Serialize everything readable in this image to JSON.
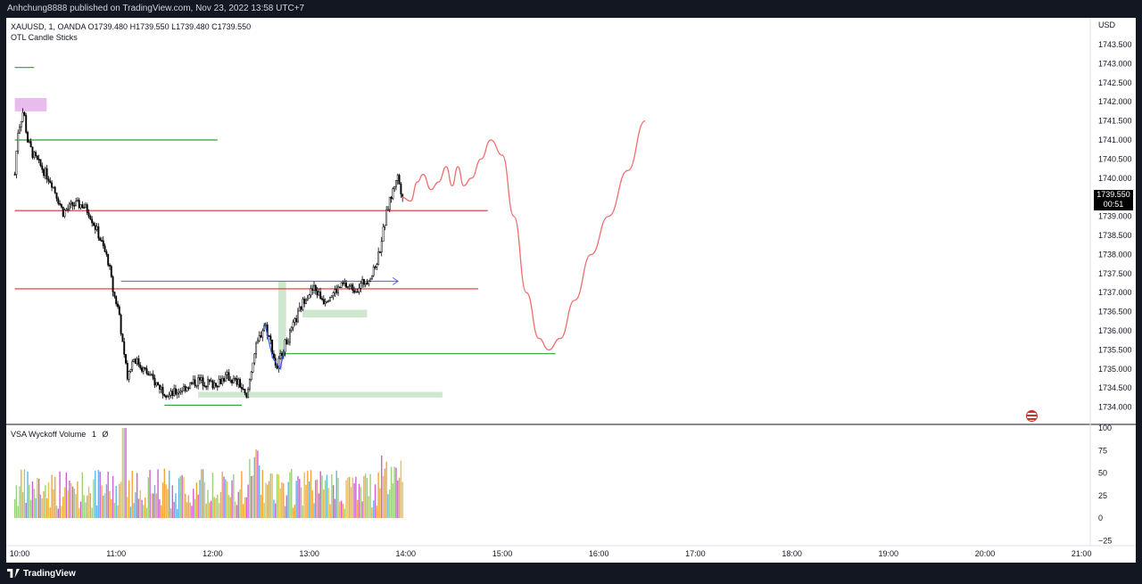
{
  "header": {
    "publisher_line": "Anhchung8888 published on TradingView.com, Nov 23, 2022 13:58 UTC+7"
  },
  "legend": {
    "symbol_line": "XAUUSD, 1, OANDA  O1739.480  H1739.550  L1739.480  C1739.550",
    "indicator": "OTL Candle Sticks"
  },
  "volume_legend": {
    "name": "VSA Wyckoff Volume",
    "param": "1",
    "value": "Ø"
  },
  "price_tag": {
    "price": "1739.550",
    "countdown": "00:51"
  },
  "footer": {
    "brand": "TradingView"
  },
  "icons": {
    "logo": "tradingview-logo-icon",
    "flag": "us-flag-icon"
  },
  "colors": {
    "background": "#ffffff",
    "frame": "#131722",
    "candle": "#000000",
    "support_line": "#2e9e3a",
    "resistance_line": "#e03131",
    "forecast": "#f06f6f",
    "zone_green": "#c8e6c9",
    "zone_pink": "#e6b6ec"
  },
  "chart_data": {
    "type": "candlestick",
    "symbol": "XAUUSD",
    "timeframe": "1",
    "exchange": "OANDA",
    "currency": "USD",
    "ylim": [
      1733.7,
      1743.9
    ],
    "y_ticks": [
      "1743.500",
      "1743.000",
      "1742.500",
      "1742.000",
      "1741.500",
      "1741.000",
      "1740.500",
      "1740.000",
      "1739.500",
      "1739.000",
      "1738.500",
      "1738.000",
      "1737.500",
      "1737.000",
      "1736.500",
      "1736.000",
      "1735.500",
      "1735.000",
      "1734.500",
      "1734.000"
    ],
    "x_ticks": [
      "10:00",
      "11:00",
      "12:00",
      "13:00",
      "14:00",
      "15:00",
      "16:00",
      "17:00",
      "18:00",
      "19:00",
      "20:00",
      "21:00"
    ],
    "x_tick_hours": [
      10,
      11,
      12,
      13,
      14,
      15,
      16,
      17,
      18,
      19,
      20,
      21
    ],
    "price_path": [
      [
        9.95,
        1740.1
      ],
      [
        9.98,
        1741.2
      ],
      [
        10.04,
        1741.8
      ],
      [
        10.08,
        1741.0
      ],
      [
        10.14,
        1740.6
      ],
      [
        10.22,
        1740.3
      ],
      [
        10.33,
        1739.9
      ],
      [
        10.45,
        1739.1
      ],
      [
        10.55,
        1739.3
      ],
      [
        10.65,
        1739.3
      ],
      [
        10.72,
        1739.1
      ],
      [
        10.82,
        1738.5
      ],
      [
        10.92,
        1737.8
      ],
      [
        10.97,
        1737.0
      ],
      [
        11.03,
        1736.5
      ],
      [
        11.08,
        1735.3
      ],
      [
        11.12,
        1734.8
      ],
      [
        11.18,
        1735.3
      ],
      [
        11.28,
        1735.0
      ],
      [
        11.42,
        1734.6
      ],
      [
        11.55,
        1734.3
      ],
      [
        11.7,
        1734.5
      ],
      [
        11.85,
        1734.7
      ],
      [
        12.0,
        1734.6
      ],
      [
        12.15,
        1734.8
      ],
      [
        12.28,
        1734.6
      ],
      [
        12.35,
        1734.2
      ],
      [
        12.42,
        1735.3
      ],
      [
        12.48,
        1735.8
      ],
      [
        12.54,
        1736.2
      ],
      [
        12.6,
        1735.7
      ],
      [
        12.66,
        1735.0
      ],
      [
        12.72,
        1735.5
      ],
      [
        12.8,
        1735.9
      ],
      [
        12.88,
        1736.4
      ],
      [
        12.96,
        1736.9
      ],
      [
        13.05,
        1737.1
      ],
      [
        13.15,
        1736.8
      ],
      [
        13.25,
        1737.0
      ],
      [
        13.35,
        1737.2
      ],
      [
        13.48,
        1737.1
      ],
      [
        13.58,
        1737.3
      ],
      [
        13.66,
        1737.5
      ],
      [
        13.72,
        1738.0
      ],
      [
        13.78,
        1738.8
      ],
      [
        13.82,
        1739.3
      ],
      [
        13.86,
        1739.6
      ],
      [
        13.91,
        1740.1
      ],
      [
        13.96,
        1739.6
      ]
    ],
    "volume_ylim": [
      -28,
      100
    ],
    "volume_ticks": [
      "100",
      "75",
      "50",
      "25",
      "0",
      "−25"
    ],
    "volume_tick_values": [
      100,
      75,
      50,
      25,
      0,
      -25
    ],
    "horizontal_levels": [
      {
        "color": "green",
        "price": 1741.0,
        "x_start": 9.95,
        "x_end": 12.05
      },
      {
        "color": "red",
        "price": 1739.15,
        "x_start": 9.95,
        "x_end": 14.85
      },
      {
        "color": "red",
        "price": 1737.1,
        "x_start": 9.95,
        "x_end": 14.75
      },
      {
        "color": "green",
        "price": 1735.4,
        "x_start": 12.7,
        "x_end": 15.55
      },
      {
        "color": "green",
        "price": 1734.05,
        "x_start": 11.5,
        "x_end": 12.3
      },
      {
        "color": "green",
        "price": 1742.9,
        "x_start": 9.95,
        "x_end": 10.15
      }
    ],
    "zones": [
      {
        "color": "pink",
        "price_top": 1742.1,
        "price_bottom": 1741.75,
        "x_start": 9.95,
        "x_end": 10.28
      },
      {
        "color": "green",
        "price_top": 1736.55,
        "price_bottom": 1736.35,
        "x_start": 12.93,
        "x_end": 13.6
      },
      {
        "color": "green",
        "price_top": 1734.4,
        "price_bottom": 1734.25,
        "x_start": 11.85,
        "x_end": 14.38
      },
      {
        "color": "green",
        "price_top": 1737.3,
        "price_bottom": 1735.3,
        "x_start": 12.68,
        "x_end": 12.76
      },
      {
        "color": "pink",
        "price_top": 1735.3,
        "price_bottom": 1735.0,
        "x_start": 12.68,
        "x_end": 12.72
      }
    ],
    "arrow": {
      "price": 1737.3,
      "x_start": 11.05,
      "x_end": 13.92
    },
    "forecast_path": [
      [
        13.96,
        1739.5
      ],
      [
        14.05,
        1739.4
      ],
      [
        14.12,
        1739.9
      ],
      [
        14.18,
        1740.1
      ],
      [
        14.26,
        1739.7
      ],
      [
        14.34,
        1739.9
      ],
      [
        14.42,
        1740.3
      ],
      [
        14.48,
        1739.8
      ],
      [
        14.54,
        1740.3
      ],
      [
        14.6,
        1739.8
      ],
      [
        14.68,
        1740.0
      ],
      [
        14.78,
        1740.5
      ],
      [
        14.88,
        1741.0
      ],
      [
        15.0,
        1740.6
      ],
      [
        15.12,
        1739.0
      ],
      [
        15.25,
        1737.0
      ],
      [
        15.38,
        1735.8
      ],
      [
        15.48,
        1735.5
      ],
      [
        15.6,
        1735.8
      ],
      [
        15.75,
        1736.8
      ],
      [
        15.92,
        1738.0
      ],
      [
        16.1,
        1739.0
      ],
      [
        16.3,
        1740.2
      ],
      [
        16.48,
        1741.5
      ]
    ],
    "blue_swing": [
      [
        12.54,
        1736.2
      ],
      [
        12.62,
        1735.3
      ],
      [
        12.7,
        1735.0
      ],
      [
        12.74,
        1735.5
      ]
    ]
  }
}
